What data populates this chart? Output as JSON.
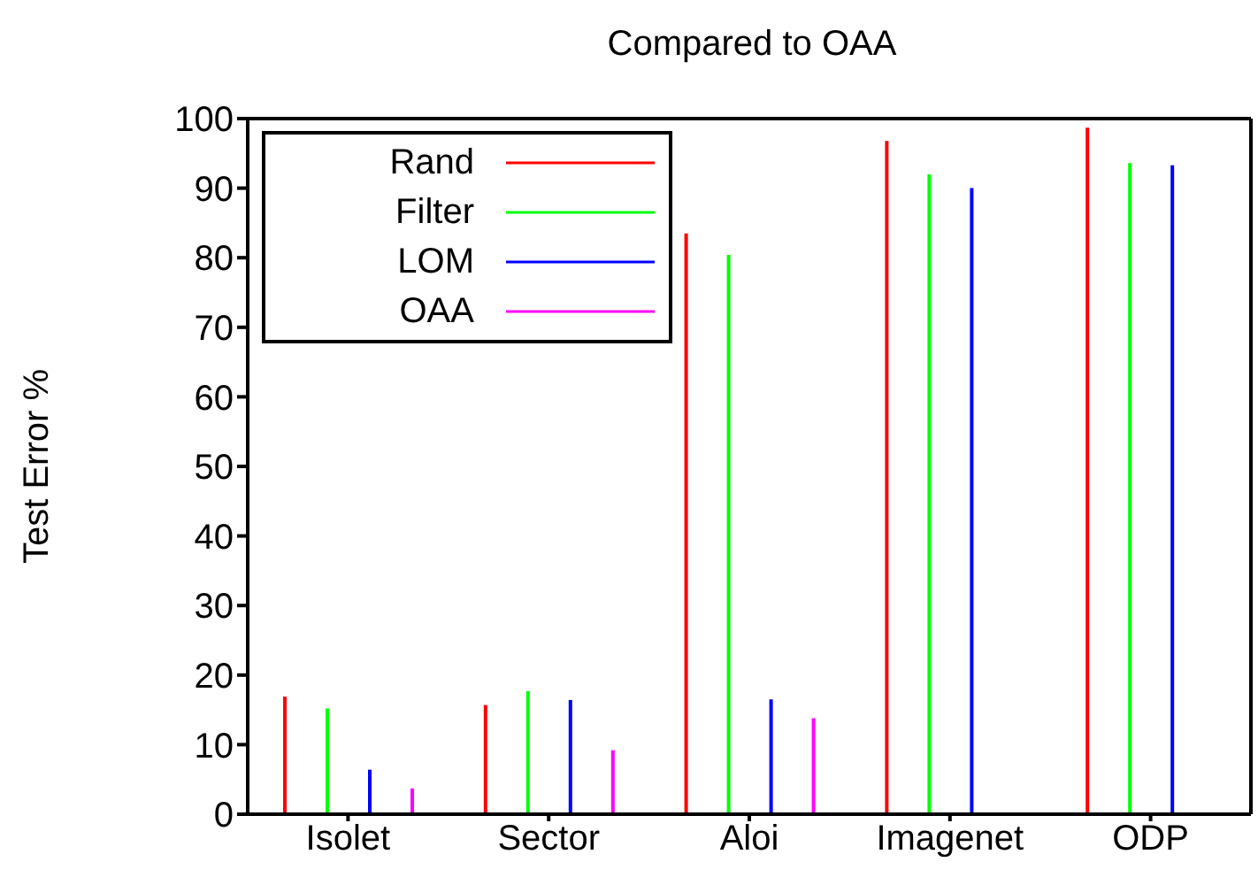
{
  "chart_data": {
    "type": "bar",
    "title": "Compared to OAA",
    "ylabel": "Test Error %",
    "categories": [
      "Isolet",
      "Sector",
      "Aloi",
      "Imagenet",
      "ODP"
    ],
    "series": [
      {
        "name": "Rand",
        "color": "#ff0000",
        "values": [
          16.9,
          15.7,
          83.5,
          96.8,
          98.7
        ]
      },
      {
        "name": "Filter",
        "color": "#00ff00",
        "values": [
          15.2,
          17.7,
          80.4,
          92.0,
          93.6
        ]
      },
      {
        "name": "LOM",
        "color": "#0000ff",
        "values": [
          6.4,
          16.4,
          16.5,
          90.0,
          93.3
        ]
      },
      {
        "name": "OAA",
        "color": "#ff00ff",
        "values": [
          3.7,
          9.2,
          13.8,
          null,
          null
        ]
      }
    ],
    "ylim": [
      0,
      100
    ],
    "yticks": [
      0,
      10,
      20,
      30,
      40,
      50,
      60,
      70,
      80,
      90,
      100
    ],
    "grid": false,
    "legend": "top left"
  }
}
